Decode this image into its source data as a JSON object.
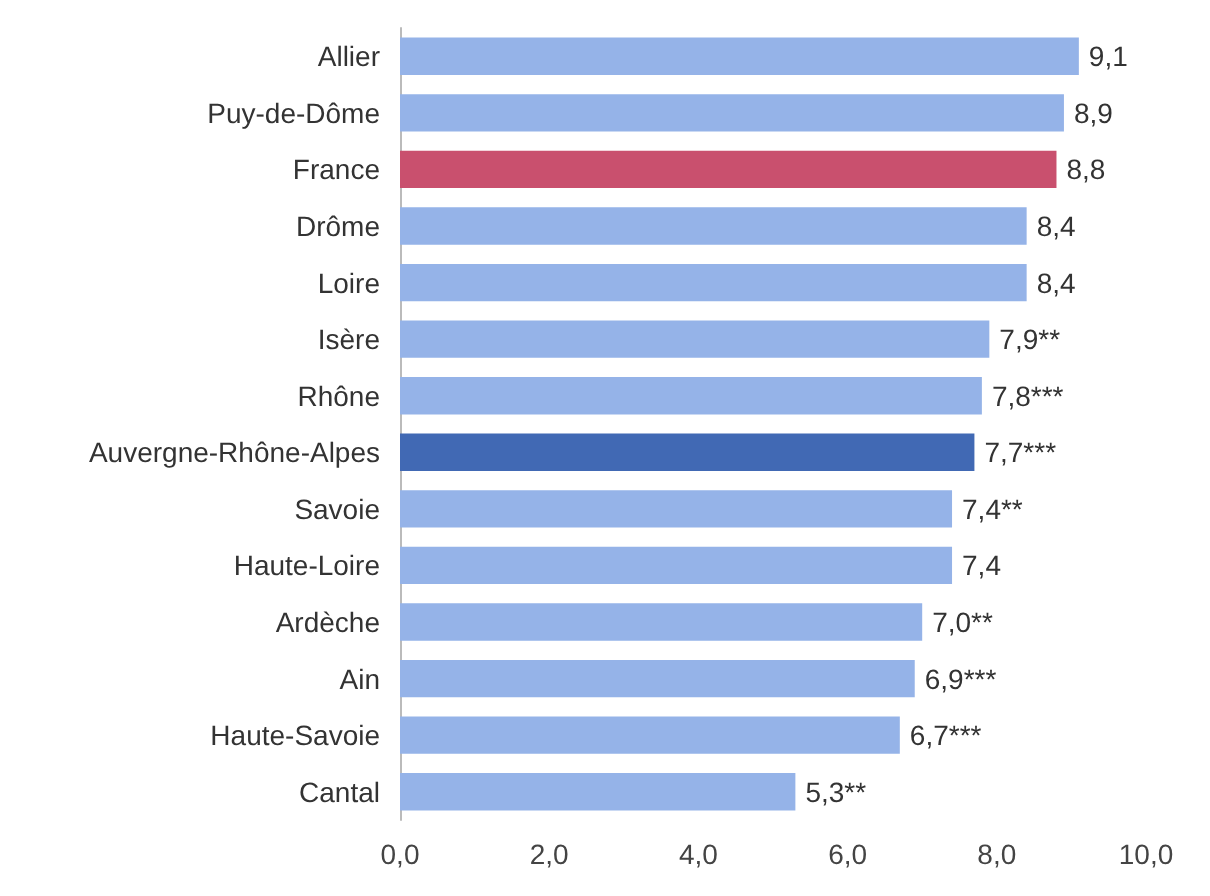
{
  "chart_data": {
    "type": "bar",
    "orientation": "horizontal",
    "categories": [
      "Allier",
      "Puy-de-Dôme",
      "France",
      "Drôme",
      "Loire",
      "Isère",
      "Rhône",
      "Auvergne-Rhône-Alpes",
      "Savoie",
      "Haute-Loire",
      "Ardèche",
      "Ain",
      "Haute-Savoie",
      "Cantal"
    ],
    "values": [
      9.1,
      8.9,
      8.8,
      8.4,
      8.4,
      7.9,
      7.8,
      7.7,
      7.4,
      7.4,
      7.0,
      6.9,
      6.7,
      5.3
    ],
    "colors": [
      "#95b3e8",
      "#95b3e8",
      "#c9506e",
      "#95b3e8",
      "#95b3e8",
      "#95b3e8",
      "#95b3e8",
      "#4169b4",
      "#95b3e8",
      "#95b3e8",
      "#95b3e8",
      "#95b3e8",
      "#95b3e8",
      "#95b3e8"
    ],
    "value_labels": [
      "9,1",
      "8,9",
      "8,8",
      "8,4",
      "8,4",
      "7,9**",
      "7,8***",
      "7,7***",
      "7,4**",
      "7,4",
      "7,0**",
      "6,9***",
      "6,7***",
      "5,3**"
    ],
    "xlim": [
      0,
      10
    ],
    "xticks": [
      {
        "value": 0,
        "label": "0,0"
      },
      {
        "value": 2,
        "label": "2,0"
      },
      {
        "value": 4,
        "label": "4,0"
      },
      {
        "value": 6,
        "label": "6,0"
      },
      {
        "value": 8,
        "label": "8,0"
      },
      {
        "value": 10,
        "label": "10,0"
      }
    ],
    "grid": false
  }
}
